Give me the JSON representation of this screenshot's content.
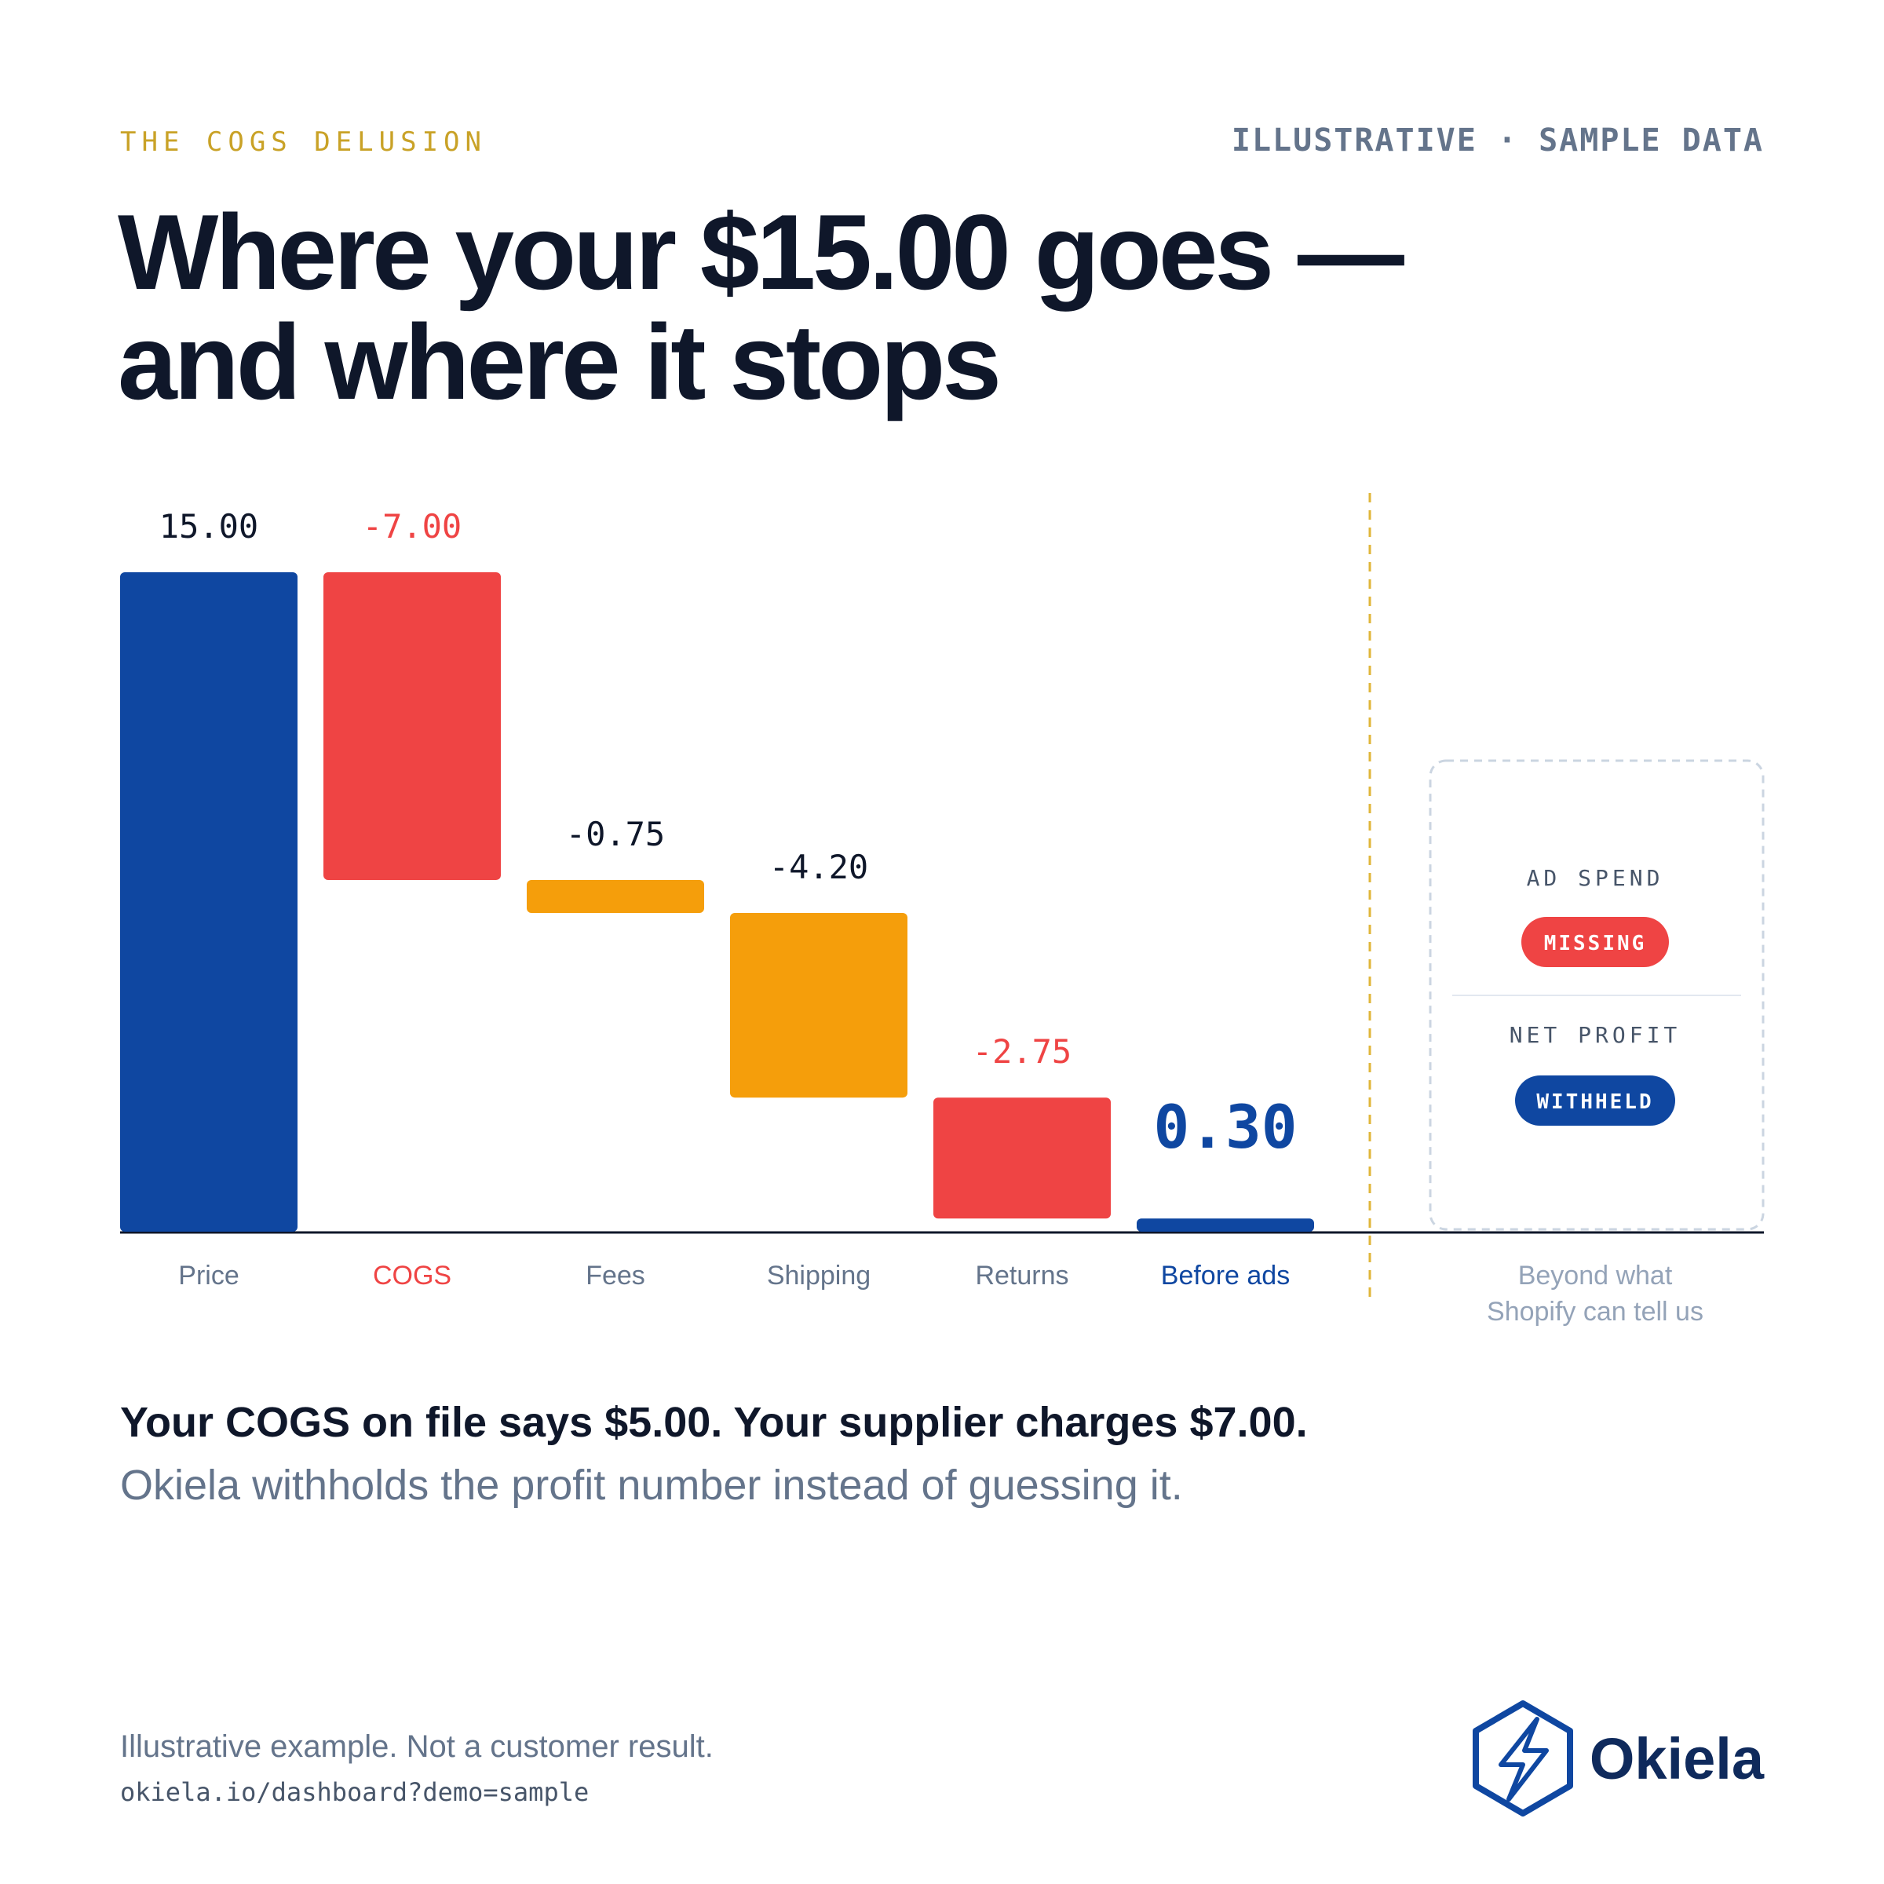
{
  "header": {
    "kicker": "THE COGS DELUSION",
    "tag": "ILLUSTRATIVE · SAMPLE DATA",
    "title": [
      "Where your $15.00 goes —",
      "and where it stops"
    ]
  },
  "chart_data": {
    "type": "waterfall",
    "categories": [
      "Price",
      "COGS",
      "Fees",
      "Shipping",
      "Returns",
      "Before ads"
    ],
    "values": [
      15,
      -7,
      -0.75,
      -4.2,
      -2.75,
      0.3
    ],
    "value_labels": [
      "15.00",
      "-7.00",
      "-0.75",
      "-4.20",
      "-2.75",
      "0.30"
    ],
    "colors": [
      "#0f47a1",
      "#ef4444",
      "#f59e0b",
      "#f59e0b",
      "#ef4444",
      "#0f47a1"
    ]
  },
  "panel": {
    "items": [
      {
        "label": "AD SPEND",
        "status": "MISSING"
      },
      {
        "label": "NET PROFIT",
        "status": "WITHHELD"
      }
    ],
    "note": [
      "Beyond what",
      "Shopify can tell us"
    ]
  },
  "caption": {
    "headline": "Your COGS on file says $5.00. Your supplier charges $7.00.",
    "body": "Okiela withholds the profit number instead of guessing it."
  },
  "footer": {
    "disclaimer": "Illustrative example. Not a customer result.",
    "url": "okiela.io/dashboard?demo=sample",
    "brand": "Okiela"
  }
}
